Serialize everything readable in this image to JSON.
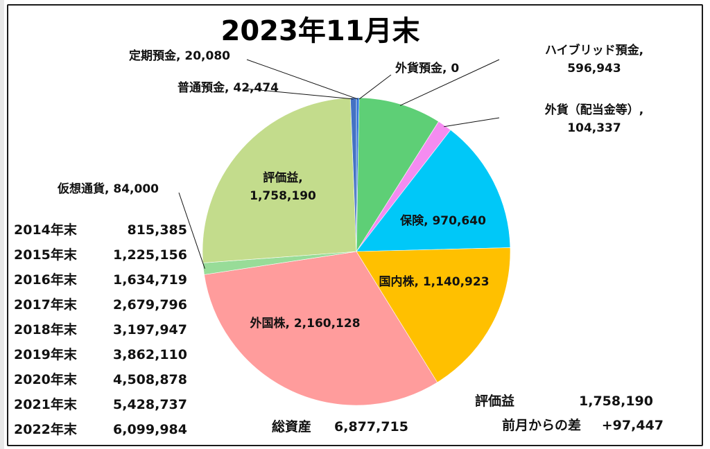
{
  "chart_data": {
    "type": "pie",
    "title": "2023年11月末",
    "slices": [
      {
        "label": "定期預金",
        "value": 20080,
        "value_text": "20,080",
        "color": "#2e75d9"
      },
      {
        "label": "外貨預金",
        "value": 0,
        "value_text": "0",
        "color": "#5b9bd5"
      },
      {
        "label": "ハイブリッド預金",
        "value": 596943,
        "value_text": "596,943",
        "color": "#5ecf76"
      },
      {
        "label": "外貨（配当金等）",
        "value": 104337,
        "value_text": "104,337",
        "color": "#f48cf0"
      },
      {
        "label": "保険",
        "value": 970640,
        "value_text": "970,640",
        "color": "#00c8f8"
      },
      {
        "label": "国内株",
        "value": 1140923,
        "value_text": "1,140,923",
        "color": "#ffc000"
      },
      {
        "label": "外国株",
        "value": 2160128,
        "value_text": "2,160,128",
        "color": "#ff9c9c"
      },
      {
        "label": "仮想通貨",
        "value": 84000,
        "value_text": "84,000",
        "color": "#98dc98"
      },
      {
        "label": "評価益",
        "value": 1758190,
        "value_text": "1,758,190",
        "color": "#c3dc8c"
      },
      {
        "label": "普通預金",
        "value": 42474,
        "value_text": "42,474",
        "color": "#4472c4"
      }
    ]
  },
  "history": [
    {
      "year": "2014年末",
      "value": "815,385"
    },
    {
      "year": "2015年末",
      "value": "1,225,156"
    },
    {
      "year": "2016年末",
      "value": "1,634,719"
    },
    {
      "year": "2017年末",
      "value": "2,679,796"
    },
    {
      "year": "2018年末",
      "value": "3,197,947"
    },
    {
      "year": "2019年末",
      "value": "3,862,110"
    },
    {
      "year": "2020年末",
      "value": "4,508,878"
    },
    {
      "year": "2021年末",
      "value": "5,428,737"
    },
    {
      "year": "2022年末",
      "value": "6,099,984"
    }
  ],
  "summary": {
    "total_label": "総資産",
    "total_value": "6,877,715",
    "gain_label": "評価益",
    "gain_value": "1,758,190",
    "diff_label": "前月からの差",
    "diff_value": "+97,447"
  }
}
